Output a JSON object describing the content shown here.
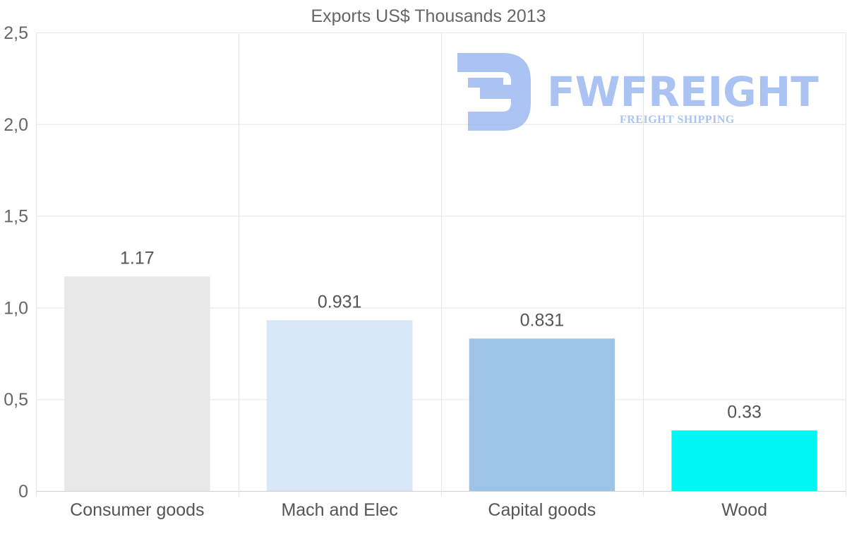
{
  "chart_data": {
    "type": "bar",
    "title": "Exports US$ Thousands 2013",
    "categories": [
      "Consumer goods",
      "Mach and Elec",
      "Capital goods",
      "Wood"
    ],
    "values": [
      1.17,
      0.931,
      0.831,
      0.33
    ],
    "data_labels": [
      "1.17",
      "0.931",
      "0.831",
      "0.33"
    ],
    "colors": [
      "#e8e8e8",
      "#d8e8f8",
      "#9dc3e6",
      "#00f5f5"
    ],
    "ylim": [
      0,
      2.5
    ],
    "yticks": [
      0,
      0.5,
      1.0,
      1.5,
      2.0,
      2.5
    ],
    "ytick_labels": [
      "0",
      "0,5",
      "1,0",
      "1,5",
      "2,0",
      "2,5"
    ],
    "xlabel": "",
    "ylabel": "",
    "grid": true,
    "legend": "none"
  },
  "watermark": {
    "brand": "FWFREIGHT",
    "tagline": "FREIGHT SHIPPING",
    "color": "#8fb0ee"
  }
}
